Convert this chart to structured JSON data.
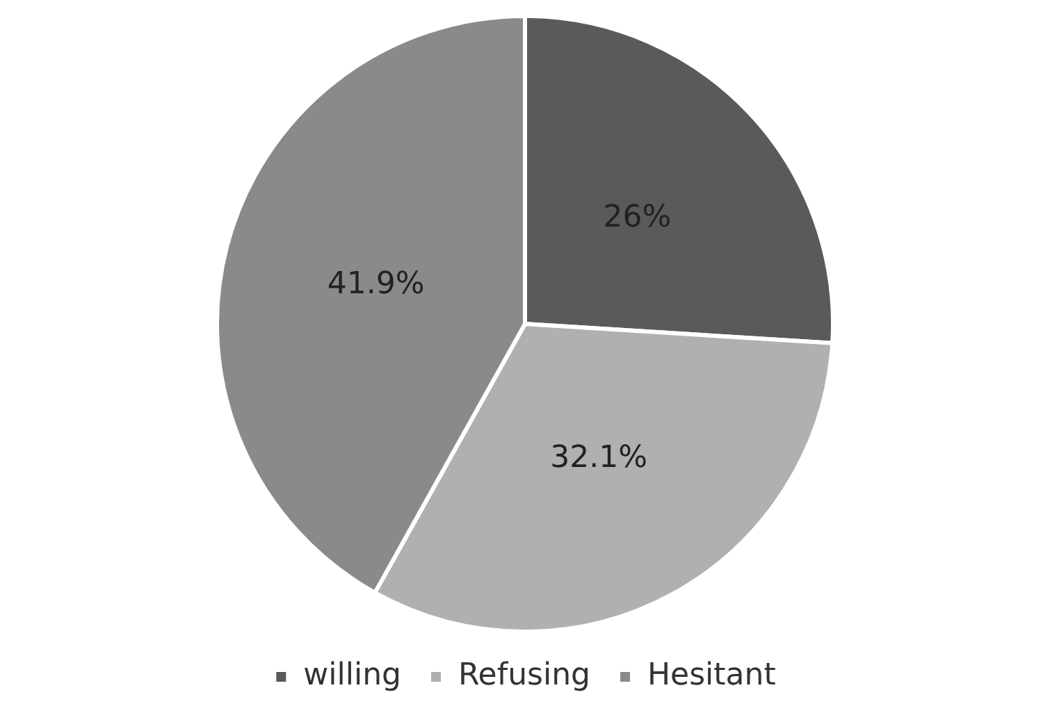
{
  "chart_data": {
    "type": "pie",
    "categories": [
      "willing",
      "Refusing",
      "Hesitant"
    ],
    "values": [
      26,
      32.1,
      41.9
    ],
    "colors": [
      "#5a5a5a",
      "#b0b0b0",
      "#8a8a8a"
    ],
    "value_labels": [
      "26%",
      "32.1%",
      "41.9%"
    ],
    "legend": "bottom"
  }
}
